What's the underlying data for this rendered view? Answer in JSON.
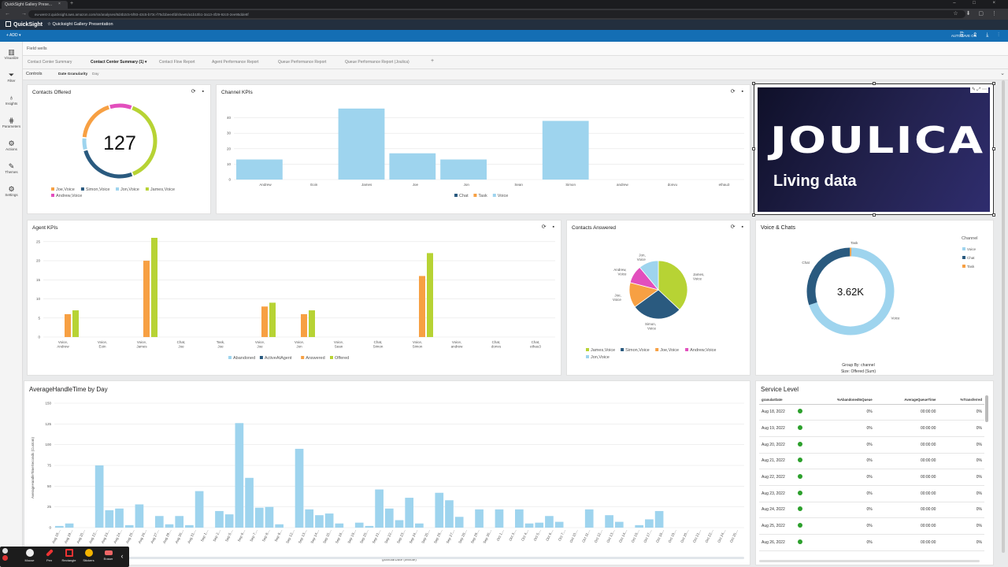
{
  "browser": {
    "tab_title": "QuickSight Gallery Prese...",
    "tab_close": "×",
    "new_tab": "+",
    "window_controls": "– □ ×",
    "nav_icons": "← → ⟳",
    "url": "eu-west-2.quicksight.aws.amazon.com/sn/analyses/8d4b2c5-5f93-43c5-b73c-f75d1bee4fd/sheets/a1b10b1-3a13-4f29-92c0-2ee95dde8f",
    "ext_icons": "☆ ⬇ ▢ ⋮"
  },
  "header": {
    "app_name": "QuickSight",
    "analysis_title": "Quicksight Gallery Presentation",
    "add_button": "+ ADD ▾",
    "autosave": "AUTOSAVE ON",
    "toolbar_icons": "⎘ ⇪ ⤓ ⋮"
  },
  "rail": [
    {
      "label": "Visualize",
      "icon": "▥"
    },
    {
      "label": "Filter",
      "icon": "⏷"
    },
    {
      "label": "Insights",
      "icon": "♁"
    },
    {
      "label": "Parameters",
      "icon": "⋕"
    },
    {
      "label": "Actions",
      "icon": "⚙"
    },
    {
      "label": "Themes",
      "icon": "✎"
    },
    {
      "label": "Settings",
      "icon": "⚙"
    }
  ],
  "field_wells": "Field wells",
  "sheet_tabs": [
    "Contact Center Summary",
    "Contact Center Summary (1) ▾",
    "Contact Flow Report",
    "Agent Performance Report",
    "Queue Performance Report",
    "Queue Performance Report (Joulica)",
    "+"
  ],
  "controls": {
    "label": "Controls",
    "granularity_label": "Date Granularity",
    "granularity_value": "Day",
    "chevron": "⌄"
  },
  "tool_icons": "⟳ ▪",
  "colors": {
    "voice": "#9ed4ee",
    "simon": "#2a5a7f",
    "joe": "#f7a043",
    "james": "#b7d334",
    "andrew": "#e24fbd",
    "header_dark": "#232f3e",
    "toolbar_blue": "#146eb4"
  },
  "contacts_offered": {
    "title": "Contacts Offered",
    "total": "127",
    "legend": [
      "Joe,Voice",
      "Simon,Voice",
      "Jon,Voice",
      "James,Voice",
      "Andrew,Voice"
    ],
    "chart_data": {
      "type": "pie",
      "title": "Contacts Offered",
      "center_value": 127,
      "slices": [
        {
          "label": "Joe,Voice",
          "value": 24
        },
        {
          "label": "Simon,Voice",
          "value": 34
        },
        {
          "label": "Jon,Voice",
          "value": 7
        },
        {
          "label": "James,Voice",
          "value": 49
        },
        {
          "label": "Andrew,Voice",
          "value": 13
        }
      ]
    }
  },
  "channel_kpis": {
    "title": "Channel KPIs",
    "chart_data": {
      "type": "bar",
      "title": "Channel KPIs",
      "categories": [
        "Andrew",
        "Eoin",
        "James",
        "Joe",
        "Jon",
        "Sean",
        "Simon",
        "andrew",
        "donvu",
        "ethau3"
      ],
      "series": [
        {
          "name": "Chat",
          "values": [
            0,
            0,
            0,
            0,
            0,
            0,
            0,
            0,
            0,
            0
          ]
        },
        {
          "name": "Task",
          "values": [
            0,
            0,
            0,
            0,
            0,
            0,
            0,
            0,
            0,
            0
          ]
        },
        {
          "name": "Voice",
          "values": [
            13,
            0,
            46,
            17,
            13,
            0,
            38,
            0,
            0,
            0
          ]
        }
      ],
      "ylim": [
        0,
        50
      ],
      "yticks": [
        0,
        10,
        20,
        30,
        40
      ]
    }
  },
  "logo": {
    "word": "JOULICA",
    "tagline": "Living data",
    "tools": "✎ ⤢ ⋯"
  },
  "agent_kpis": {
    "title": "Agent KPIs",
    "chart_data": {
      "type": "bar",
      "title": "Agent KPIs",
      "categories": [
        "Voice,\nAndrew",
        "Voice,\nEoin",
        "Voice,\nJames",
        "Chat,\nJoe",
        "Task,\nJoe",
        "Voice,\nJoe",
        "Voice,\nJon",
        "Voice,\nSean",
        "Chat,\nSimon",
        "Voice,\nSimon",
        "Voice,\nandrew",
        "Chat,\ndonvu",
        "Chat,\nethau3"
      ],
      "series": [
        {
          "name": "Abandoned",
          "values": [
            0,
            0,
            0,
            0,
            0,
            0,
            0,
            0,
            0,
            0,
            0,
            0,
            0
          ]
        },
        {
          "name": "ActiveAtAgent",
          "values": [
            0,
            0,
            0,
            0,
            0,
            0,
            0,
            0,
            0,
            0,
            0,
            0,
            0
          ]
        },
        {
          "name": "Answered",
          "values": [
            6,
            0,
            20,
            0,
            0,
            8,
            6,
            0,
            0,
            16,
            0,
            0,
            0
          ]
        },
        {
          "name": "Offered",
          "values": [
            7,
            0,
            26,
            0,
            0,
            9,
            7,
            0,
            0,
            22,
            0,
            0,
            0
          ]
        }
      ],
      "ylim": [
        0,
        26
      ],
      "yticks": [
        0,
        5,
        10,
        15,
        20,
        25
      ]
    }
  },
  "contacts_answered": {
    "title": "Contacts Answered",
    "legend": [
      "James,Voice",
      "Simon,Voice",
      "Joe,Voice",
      "Andrew,Voice",
      "Jon,Voice"
    ],
    "chart_data": {
      "type": "pie",
      "title": "Contacts Answered",
      "slices": [
        {
          "label": "James,\nVoice",
          "value": 37
        },
        {
          "label": "Simon,\nVoice",
          "value": 28
        },
        {
          "label": "Joe,\nVoice",
          "value": 14
        },
        {
          "label": "Andrew,\nVoice",
          "value": 10
        },
        {
          "label": "Jon,\nVoice",
          "value": 11
        }
      ]
    }
  },
  "voice_chats": {
    "title": "Voice & Chats",
    "center_value": "3.62K",
    "legend_title": "Channel",
    "group_by": "Group By: channel",
    "size_by": "Size: Offered (Sum)",
    "chart_data": {
      "type": "pie",
      "title": "Voice & Chats",
      "center_value": "3.62K",
      "slices": [
        {
          "label": "Voice",
          "value": 2520
        },
        {
          "label": "Chat",
          "value": 1080
        },
        {
          "label": "Task",
          "value": 20
        }
      ]
    }
  },
  "aht": {
    "title": "AverageHandleTime by Day",
    "chart_data": {
      "type": "bar",
      "title": "AverageHandleTime by Day",
      "xlabel": "granularDate (Minute)",
      "ylabel": "AverageHandleTimeSeconds (Custom)",
      "ylim": [
        0,
        150
      ],
      "yticks": [
        0,
        25,
        50,
        75,
        100,
        125,
        150
      ],
      "categories": [
        "Aug 18,...",
        "Aug 19,...",
        "Aug 20,...",
        "Aug 21,...",
        "Aug 22,...",
        "Aug 23,...",
        "Aug 24,...",
        "Aug 25,...",
        "Aug 26,...",
        "Aug 27,...",
        "Aug 28,...",
        "Aug 29,...",
        "Aug 30,...",
        "Aug 31,...",
        "Sep 1,...",
        "Sep 2,...",
        "Sep 3,...",
        "Sep 4,...",
        "Sep 5,...",
        "Sep 6,...",
        "Sep 7,...",
        "Sep 8,...",
        "Sep 9,...",
        "Sep 10,...",
        "Sep 11,...",
        "Sep 12,...",
        "Sep 13,...",
        "Sep 14,...",
        "Sep 15,...",
        "Sep 16,...",
        "Sep 17,...",
        "Sep 18,...",
        "Sep 19,...",
        "Sep 20,...",
        "Sep 21,...",
        "Sep 22,...",
        "Sep 23,...",
        "Sep 24,...",
        "Sep 25,...",
        "Sep 26,...",
        "Sep 27,...",
        "Sep 28,...",
        "Sep 29,...",
        "Sep 30,...",
        "Oct 1,...",
        "Oct 2,...",
        "Oct 3,...",
        "Oct 4,...",
        "Oct 5,...",
        "Oct 6,...",
        "Oct 7,...",
        "Oct 8,...",
        "Oct 9,...",
        "Oct 10,...",
        "Oct 11,...",
        "Oct 12,...",
        "Oct 13,...",
        "Oct 14,...",
        "Oct 15,...",
        "Oct 16,...",
        "Oct 17,...",
        "Oct 18,...",
        "Oct 19,...",
        "Oct 20,...",
        "Oct 21,...",
        "Oct 22,...",
        "Oct 23,...",
        "Oct 24,...",
        "Oct 25,..."
      ],
      "values": [
        2,
        5,
        0,
        0,
        75,
        21,
        23,
        3,
        28,
        0,
        14,
        4,
        14,
        3,
        44,
        0,
        20,
        16,
        126,
        60,
        24,
        25,
        4,
        0,
        95,
        22,
        15,
        17,
        5,
        0,
        6,
        2,
        46,
        23,
        9,
        36,
        5,
        0,
        42,
        33,
        13,
        0,
        22,
        0,
        22,
        0,
        22,
        5,
        6,
        14,
        7,
        0,
        0,
        22,
        0,
        15,
        7,
        0,
        3,
        10,
        20,
        0,
        0,
        0,
        0,
        0,
        0,
        0,
        0
      ],
      "xtick_labels": [
        "Aug 18,...",
        "Aug 19,...",
        "Aug 20,...",
        "Aug 22,...",
        "Aug 23,...",
        "Aug 24,...",
        "Aug 25,...",
        "Aug 26,...",
        "Aug 27,...",
        "Aug 29,...",
        "Aug 30,...",
        "Aug 31,...",
        "Sep 1,...",
        "Sep 2,...",
        "Sep 5,...",
        "Sep 6,...",
        "Sep 7,...",
        "Sep 8,...",
        "Sep 9,...",
        "Sep 12,...",
        "Sep 13,...",
        "Sep 14,...",
        "Sep 15,...",
        "Sep 16,...",
        "Sep 19,...",
        "Sep 20,...",
        "Sep 21,...",
        "Sep 22,...",
        "Sep 23,...",
        "Sep 24,...",
        "Sep 25,...",
        "Sep 26,...",
        "Sep 27,...",
        "Sep 28,...",
        "Sep 29,...",
        "Sep 30,...",
        "Oct 1,...",
        "Oct 3,...",
        "Oct 4,...",
        "Oct 5,...",
        "Oct 6,...",
        "Oct 7,...",
        "Oct 10,...",
        "Oct 11,...",
        "Oct 12,...",
        "Oct 13,...",
        "Oct 14,...",
        "Oct 16,...",
        "Oct 17,...",
        "Oct 18,...",
        "Oct 19,...",
        "Oct 20,...",
        "Oct 21,...",
        "Oct 22,...",
        "Oct 24,...",
        "Oct 25,..."
      ]
    }
  },
  "service_level": {
    "title": "Service Level",
    "columns": [
      "granularDate",
      "",
      "%AbandonedInQueue",
      "AverageQueueTime",
      "%Transferred"
    ],
    "rows": [
      [
        "Aug 18, 2022",
        "0%",
        "00:00:00",
        "0%"
      ],
      [
        "Aug 19, 2022",
        "0%",
        "00:00:00",
        "0%"
      ],
      [
        "Aug 20, 2022",
        "0%",
        "00:00:00",
        "0%"
      ],
      [
        "Aug 21, 2022",
        "0%",
        "00:00:00",
        "0%"
      ],
      [
        "Aug 22, 2022",
        "0%",
        "00:00:00",
        "0%"
      ],
      [
        "Aug 23, 2022",
        "0%",
        "00:00:00",
        "0%"
      ],
      [
        "Aug 24, 2022",
        "0%",
        "00:00:00",
        "0%"
      ],
      [
        "Aug 25, 2022",
        "0%",
        "00:00:00",
        "0%"
      ],
      [
        "Aug 26, 2022",
        "0%",
        "00:00:00",
        "0%"
      ]
    ]
  },
  "draw_toolbar": [
    "Mouse",
    "Pen",
    "Rectangle",
    "Stickers",
    "Eraser"
  ]
}
